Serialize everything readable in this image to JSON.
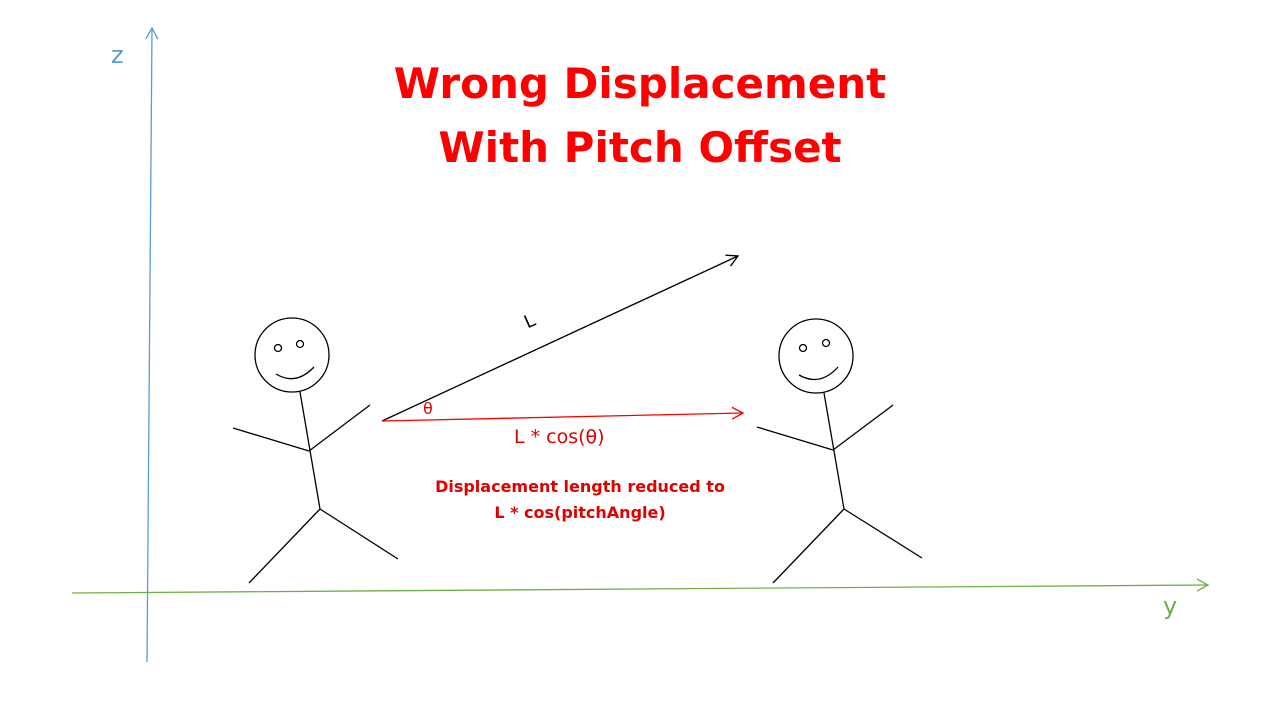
{
  "title": {
    "line1": "Wrong Displacement",
    "line2": "With Pitch Offset"
  },
  "axes": {
    "z_label": "z",
    "y_label": "y",
    "z_color": "#5b9bd5",
    "y_color": "#70ad47"
  },
  "vectors": {
    "length_label": "L",
    "angle_label": "θ",
    "projection_label": "L * cos(θ)",
    "projection_color": "#ff0000"
  },
  "note": {
    "line1": "Displacement length reduced to",
    "line2": "L * cos(pitchAngle)"
  }
}
